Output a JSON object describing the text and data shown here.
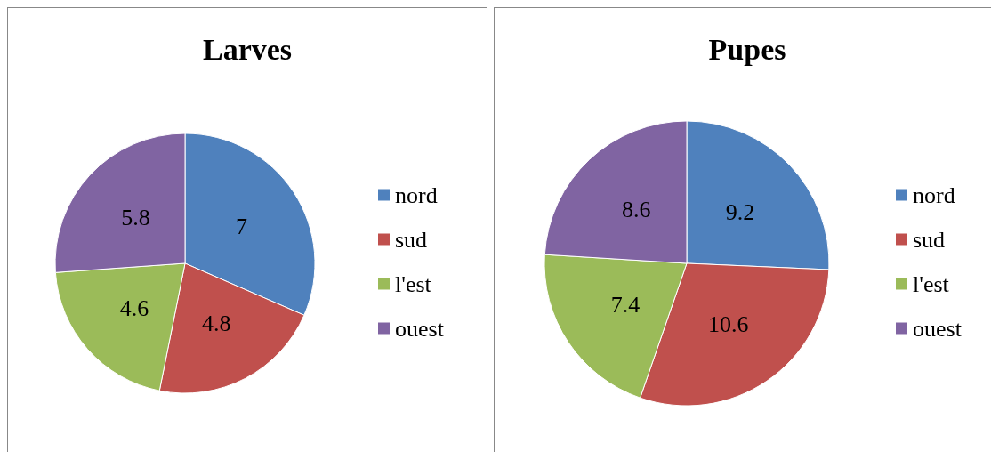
{
  "chart_data": [
    {
      "type": "pie",
      "title": "Larves",
      "categories": [
        "nord",
        "sud",
        "l'est",
        "ouest"
      ],
      "values": [
        7,
        4.8,
        4.6,
        5.8
      ],
      "colors": [
        "#4f81bd",
        "#c0504d",
        "#9bbb59",
        "#8064a2"
      ],
      "data_labels": true,
      "legend": "right"
    },
    {
      "type": "pie",
      "title": "Pupes",
      "categories": [
        "nord",
        "sud",
        "l'est",
        "ouest"
      ],
      "values": [
        9.2,
        10.6,
        7.4,
        8.6
      ],
      "colors": [
        "#4f81bd",
        "#c0504d",
        "#9bbb59",
        "#8064a2"
      ],
      "data_labels": true,
      "legend": "right"
    }
  ]
}
